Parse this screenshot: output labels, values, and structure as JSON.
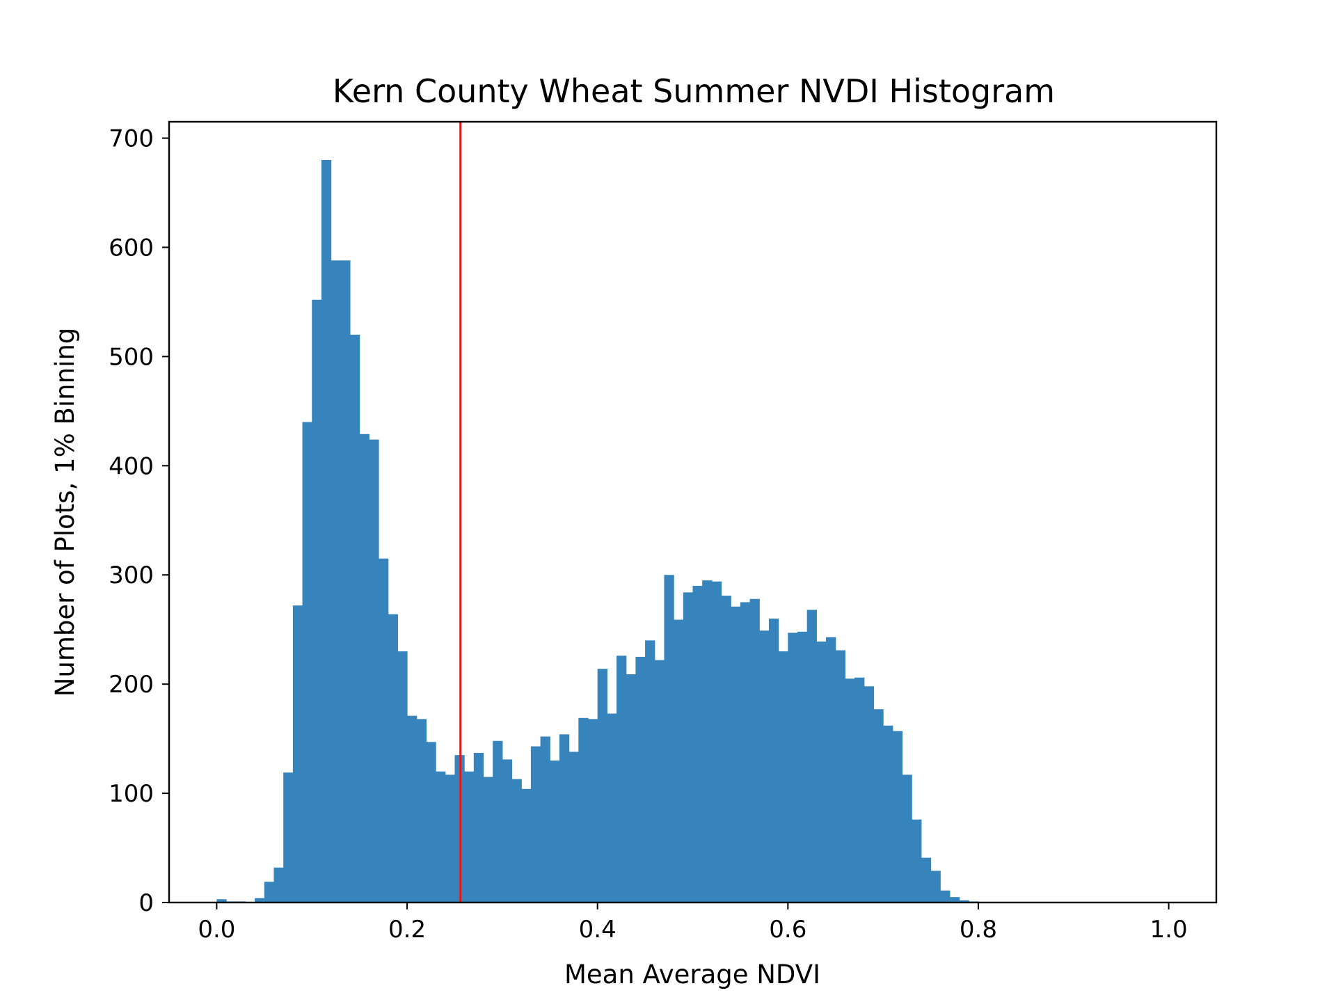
{
  "chart_data": {
    "type": "bar",
    "title": "Kern County Wheat Summer NVDI Histogram",
    "xlabel": "Mean Average NDVI",
    "ylabel": "Number of Plots, 1% Binning",
    "xlim": [
      -0.05,
      1.05
    ],
    "ylim": [
      0,
      715
    ],
    "xticks": [
      {
        "value": 0.0,
        "label": "0.0"
      },
      {
        "value": 0.2,
        "label": "0.2"
      },
      {
        "value": 0.4,
        "label": "0.4"
      },
      {
        "value": 0.6,
        "label": "0.6"
      },
      {
        "value": 0.8,
        "label": "0.8"
      },
      {
        "value": 1.0,
        "label": "1.0"
      }
    ],
    "yticks": [
      {
        "value": 0,
        "label": "0"
      },
      {
        "value": 100,
        "label": "100"
      },
      {
        "value": 200,
        "label": "200"
      },
      {
        "value": 300,
        "label": "300"
      },
      {
        "value": 400,
        "label": "400"
      },
      {
        "value": 500,
        "label": "500"
      },
      {
        "value": 600,
        "label": "600"
      },
      {
        "value": 700,
        "label": "700"
      }
    ],
    "bin_start": 0.0,
    "bin_width": 0.01,
    "counts": [
      3,
      1,
      1,
      0,
      4,
      19,
      32,
      119,
      272,
      440,
      552,
      680,
      588,
      588,
      520,
      429,
      424,
      315,
      264,
      230,
      171,
      168,
      147,
      120,
      117,
      135,
      120,
      137,
      115,
      148,
      131,
      113,
      104,
      143,
      152,
      130,
      154,
      138,
      169,
      168,
      214,
      173,
      226,
      209,
      225,
      240,
      222,
      300,
      259,
      284,
      290,
      295,
      294,
      281,
      271,
      275,
      278,
      249,
      260,
      230,
      247,
      248,
      268,
      239,
      243,
      231,
      205,
      206,
      198,
      177,
      162,
      157,
      117,
      76,
      41,
      29,
      11,
      5,
      2,
      1
    ],
    "bar_color": "#3784BC",
    "vline": {
      "x": 0.256,
      "color": "#E31A1C"
    },
    "grid": false,
    "legend": "none"
  }
}
